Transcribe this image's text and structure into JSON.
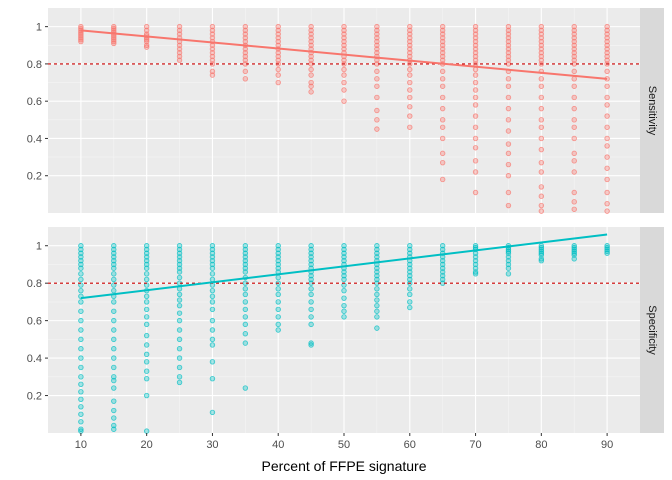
{
  "chart_data": {
    "type": "scatter",
    "xlabel": "Percent of FFPE signature",
    "x_ticks": [
      10,
      20,
      30,
      40,
      50,
      60,
      70,
      80,
      90
    ],
    "x_range": [
      5,
      95
    ],
    "y_ticks": [
      0.2,
      0.4,
      0.6,
      0.8,
      1
    ],
    "y_tick_labels": [
      "0.2",
      "0.4",
      "0.6",
      "0.8",
      "1"
    ],
    "y_range": [
      0.0,
      1.1
    ],
    "threshold": 0.8,
    "threshold_color": "#cc0000",
    "panel_background": "#ebebeb",
    "strip_background": "#d9d9d9",
    "grid": true,
    "facets": [
      {
        "strip_label": "Sensitivity",
        "color": "#f8766d",
        "trend": {
          "x": [
            10,
            90
          ],
          "y": [
            0.98,
            0.72
          ]
        },
        "points": [
          {
            "x": 10,
            "y": [
              1.0,
              0.99,
              0.98,
              0.97,
              0.96,
              0.95,
              0.94,
              0.93,
              0.92
            ]
          },
          {
            "x": 15,
            "y": [
              1.0,
              0.99,
              0.98,
              0.97,
              0.96,
              0.95,
              0.94,
              0.93,
              0.92,
              0.91
            ]
          },
          {
            "x": 20,
            "y": [
              1.0,
              0.98,
              0.96,
              0.95,
              0.94,
              0.93,
              0.92,
              0.9,
              0.89
            ]
          },
          {
            "x": 25,
            "y": [
              1.0,
              0.98,
              0.96,
              0.94,
              0.92,
              0.9,
              0.88,
              0.86,
              0.84,
              0.82
            ]
          },
          {
            "x": 30,
            "y": [
              1.0,
              0.98,
              0.96,
              0.94,
              0.92,
              0.9,
              0.88,
              0.86,
              0.84,
              0.82,
              0.8,
              0.76,
              0.74
            ]
          },
          {
            "x": 35,
            "y": [
              1.0,
              0.98,
              0.96,
              0.94,
              0.92,
              0.9,
              0.88,
              0.86,
              0.84,
              0.82,
              0.8,
              0.76,
              0.72
            ]
          },
          {
            "x": 40,
            "y": [
              1.0,
              0.98,
              0.96,
              0.94,
              0.92,
              0.9,
              0.88,
              0.86,
              0.84,
              0.82,
              0.8,
              0.77,
              0.74,
              0.7
            ]
          },
          {
            "x": 45,
            "y": [
              1.0,
              0.98,
              0.96,
              0.94,
              0.92,
              0.9,
              0.88,
              0.86,
              0.84,
              0.82,
              0.8,
              0.77,
              0.74,
              0.7,
              0.68,
              0.65
            ]
          },
          {
            "x": 50,
            "y": [
              1.0,
              0.98,
              0.96,
              0.94,
              0.92,
              0.9,
              0.88,
              0.86,
              0.84,
              0.82,
              0.8,
              0.77,
              0.74,
              0.7,
              0.66,
              0.6
            ]
          },
          {
            "x": 55,
            "y": [
              1.0,
              0.98,
              0.96,
              0.94,
              0.92,
              0.9,
              0.88,
              0.86,
              0.84,
              0.82,
              0.8,
              0.76,
              0.72,
              0.68,
              0.62,
              0.55,
              0.5,
              0.45
            ]
          },
          {
            "x": 60,
            "y": [
              1.0,
              0.98,
              0.96,
              0.94,
              0.92,
              0.9,
              0.88,
              0.86,
              0.84,
              0.82,
              0.8,
              0.77,
              0.74,
              0.7,
              0.66,
              0.62,
              0.57,
              0.52,
              0.46
            ]
          },
          {
            "x": 65,
            "y": [
              1.0,
              0.98,
              0.96,
              0.94,
              0.92,
              0.9,
              0.88,
              0.86,
              0.84,
              0.82,
              0.8,
              0.76,
              0.72,
              0.68,
              0.62,
              0.56,
              0.5,
              0.46,
              0.4,
              0.32,
              0.27,
              0.18
            ]
          },
          {
            "x": 70,
            "y": [
              1.0,
              0.98,
              0.96,
              0.94,
              0.92,
              0.9,
              0.88,
              0.86,
              0.84,
              0.82,
              0.8,
              0.77,
              0.74,
              0.7,
              0.66,
              0.62,
              0.58,
              0.52,
              0.46,
              0.4,
              0.35,
              0.28,
              0.22,
              0.11
            ]
          },
          {
            "x": 75,
            "y": [
              1.0,
              0.98,
              0.96,
              0.94,
              0.92,
              0.9,
              0.88,
              0.86,
              0.84,
              0.82,
              0.8,
              0.76,
              0.72,
              0.68,
              0.62,
              0.56,
              0.5,
              0.44,
              0.37,
              0.32,
              0.26,
              0.2,
              0.11,
              0.04
            ]
          },
          {
            "x": 80,
            "y": [
              1.0,
              0.98,
              0.96,
              0.94,
              0.92,
              0.9,
              0.88,
              0.86,
              0.84,
              0.82,
              0.8,
              0.76,
              0.72,
              0.68,
              0.62,
              0.56,
              0.5,
              0.46,
              0.4,
              0.34,
              0.27,
              0.22,
              0.14,
              0.09,
              0.04,
              0.01
            ]
          },
          {
            "x": 85,
            "y": [
              1.0,
              0.98,
              0.96,
              0.94,
              0.92,
              0.9,
              0.88,
              0.86,
              0.84,
              0.82,
              0.8,
              0.76,
              0.72,
              0.68,
              0.62,
              0.56,
              0.5,
              0.46,
              0.4,
              0.32,
              0.28,
              0.22,
              0.11,
              0.06,
              0.02
            ]
          },
          {
            "x": 90,
            "y": [
              1.0,
              0.98,
              0.96,
              0.94,
              0.92,
              0.9,
              0.88,
              0.86,
              0.84,
              0.82,
              0.8,
              0.76,
              0.72,
              0.68,
              0.62,
              0.58,
              0.52,
              0.46,
              0.4,
              0.36,
              0.3,
              0.24,
              0.18,
              0.11,
              0.05,
              0.01
            ]
          }
        ]
      },
      {
        "strip_label": "Specificity",
        "color": "#00bfc4",
        "trend": {
          "x": [
            10,
            90
          ],
          "y": [
            0.72,
            1.06
          ]
        },
        "points": [
          {
            "x": 10,
            "y": [
              1.0,
              0.98,
              0.96,
              0.94,
              0.92,
              0.9,
              0.88,
              0.85,
              0.82,
              0.79,
              0.76,
              0.73,
              0.7,
              0.65,
              0.6,
              0.55,
              0.5,
              0.45,
              0.4,
              0.35,
              0.3,
              0.26,
              0.22,
              0.18,
              0.14,
              0.1,
              0.06,
              0.02,
              0.01
            ]
          },
          {
            "x": 15,
            "y": [
              1.0,
              0.98,
              0.96,
              0.94,
              0.92,
              0.9,
              0.88,
              0.85,
              0.82,
              0.79,
              0.76,
              0.73,
              0.7,
              0.65,
              0.6,
              0.55,
              0.5,
              0.45,
              0.4,
              0.35,
              0.3,
              0.28,
              0.24,
              0.17,
              0.12,
              0.08,
              0.04,
              0.02
            ]
          },
          {
            "x": 20,
            "y": [
              1.0,
              0.98,
              0.96,
              0.94,
              0.92,
              0.9,
              0.88,
              0.85,
              0.82,
              0.79,
              0.76,
              0.73,
              0.7,
              0.66,
              0.62,
              0.58,
              0.52,
              0.47,
              0.42,
              0.38,
              0.33,
              0.29,
              0.2,
              0.01
            ]
          },
          {
            "x": 25,
            "y": [
              1.0,
              0.98,
              0.96,
              0.94,
              0.92,
              0.9,
              0.88,
              0.86,
              0.83,
              0.8,
              0.77,
              0.74,
              0.71,
              0.68,
              0.64,
              0.6,
              0.55,
              0.5,
              0.45,
              0.4,
              0.35,
              0.3,
              0.27
            ]
          },
          {
            "x": 30,
            "y": [
              1.0,
              0.98,
              0.96,
              0.94,
              0.92,
              0.9,
              0.88,
              0.85,
              0.82,
              0.79,
              0.76,
              0.73,
              0.7,
              0.66,
              0.6,
              0.55,
              0.5,
              0.47,
              0.38,
              0.29,
              0.11
            ]
          },
          {
            "x": 35,
            "y": [
              1.0,
              0.98,
              0.96,
              0.94,
              0.92,
              0.9,
              0.88,
              0.86,
              0.83,
              0.8,
              0.77,
              0.74,
              0.7,
              0.66,
              0.62,
              0.58,
              0.53,
              0.48,
              0.24
            ]
          },
          {
            "x": 40,
            "y": [
              1.0,
              0.98,
              0.96,
              0.94,
              0.92,
              0.9,
              0.88,
              0.86,
              0.83,
              0.8,
              0.77,
              0.74,
              0.7,
              0.66,
              0.62,
              0.58,
              0.55
            ]
          },
          {
            "x": 45,
            "y": [
              1.0,
              0.98,
              0.96,
              0.94,
              0.92,
              0.9,
              0.88,
              0.86,
              0.84,
              0.82,
              0.8,
              0.77,
              0.74,
              0.7,
              0.66,
              0.62,
              0.58,
              0.48,
              0.47
            ]
          },
          {
            "x": 50,
            "y": [
              1.0,
              0.98,
              0.96,
              0.94,
              0.92,
              0.9,
              0.88,
              0.86,
              0.84,
              0.82,
              0.79,
              0.76,
              0.72,
              0.68,
              0.65,
              0.62
            ]
          },
          {
            "x": 55,
            "y": [
              1.0,
              0.98,
              0.96,
              0.94,
              0.92,
              0.9,
              0.88,
              0.86,
              0.84,
              0.82,
              0.8,
              0.77,
              0.74,
              0.71,
              0.68,
              0.65,
              0.62,
              0.56
            ]
          },
          {
            "x": 60,
            "y": [
              1.0,
              0.98,
              0.96,
              0.94,
              0.92,
              0.9,
              0.88,
              0.86,
              0.84,
              0.82,
              0.8,
              0.77,
              0.74,
              0.7,
              0.67
            ]
          },
          {
            "x": 65,
            "y": [
              1.0,
              0.98,
              0.96,
              0.94,
              0.92,
              0.9,
              0.88,
              0.86,
              0.84,
              0.82,
              0.8
            ]
          },
          {
            "x": 70,
            "y": [
              1.0,
              0.99,
              0.98,
              0.96,
              0.94,
              0.92,
              0.9,
              0.88,
              0.86,
              0.85
            ]
          },
          {
            "x": 75,
            "y": [
              1.0,
              0.99,
              0.98,
              0.97,
              0.96,
              0.94,
              0.92,
              0.9,
              0.88,
              0.85
            ]
          },
          {
            "x": 80,
            "y": [
              1.0,
              0.99,
              0.98,
              0.97,
              0.96,
              0.95,
              0.93,
              0.92
            ]
          },
          {
            "x": 85,
            "y": [
              1.0,
              0.99,
              0.98,
              0.97,
              0.96,
              0.95,
              0.93
            ]
          },
          {
            "x": 90,
            "y": [
              1.0,
              0.99,
              0.98,
              0.97,
              0.96
            ]
          }
        ]
      }
    ]
  }
}
